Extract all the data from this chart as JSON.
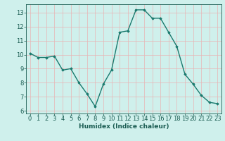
{
  "x": [
    0,
    1,
    2,
    3,
    4,
    5,
    6,
    7,
    8,
    9,
    10,
    11,
    12,
    13,
    14,
    15,
    16,
    17,
    18,
    19,
    20,
    21,
    22,
    23
  ],
  "y": [
    10.1,
    9.8,
    9.8,
    9.9,
    8.9,
    9.0,
    8.0,
    7.2,
    6.3,
    7.9,
    8.9,
    11.6,
    11.7,
    13.2,
    13.2,
    12.6,
    12.6,
    11.6,
    10.6,
    8.6,
    7.9,
    7.1,
    6.6,
    6.5
  ],
  "line_color": "#1a7a6e",
  "marker": "D",
  "marker_size": 1.8,
  "bg_color": "#cff0ec",
  "grid_color": "#e8b4b4",
  "tick_color": "#1a5c52",
  "label_color": "#1a5c52",
  "xlabel": "Humidex (Indice chaleur)",
  "xlim": [
    -0.5,
    23.5
  ],
  "ylim": [
    5.8,
    13.6
  ],
  "yticks": [
    6,
    7,
    8,
    9,
    10,
    11,
    12,
    13
  ],
  "xticks": [
    0,
    1,
    2,
    3,
    4,
    5,
    6,
    7,
    8,
    9,
    10,
    11,
    12,
    13,
    14,
    15,
    16,
    17,
    18,
    19,
    20,
    21,
    22,
    23
  ],
  "xlabel_fontsize": 6.5,
  "tick_fontsize": 6.0,
  "line_width": 1.0
}
